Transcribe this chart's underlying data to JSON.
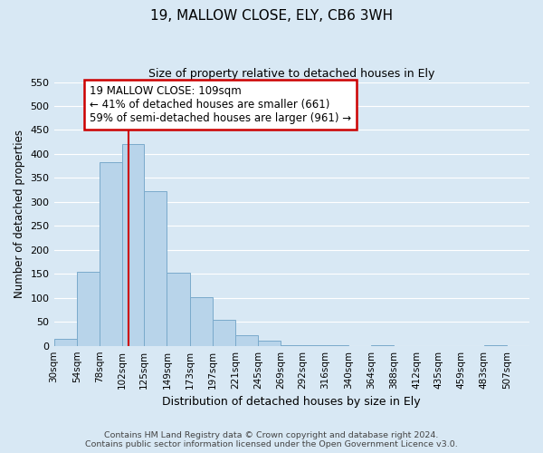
{
  "title": "19, MALLOW CLOSE, ELY, CB6 3WH",
  "subtitle": "Size of property relative to detached houses in Ely",
  "xlabel": "Distribution of detached houses by size in Ely",
  "ylabel": "Number of detached properties",
  "bar_left_edges": [
    30,
    54,
    78,
    102,
    125,
    149,
    173,
    197,
    221,
    245,
    269,
    292,
    316,
    340,
    364,
    388,
    412,
    435,
    459,
    483
  ],
  "bar_widths": [
    24,
    24,
    24,
    23,
    24,
    24,
    24,
    24,
    24,
    24,
    23,
    24,
    24,
    24,
    24,
    24,
    23,
    24,
    24,
    24
  ],
  "bar_heights": [
    15,
    155,
    382,
    420,
    323,
    153,
    101,
    55,
    22,
    10,
    2,
    1,
    1,
    0,
    1,
    0,
    0,
    0,
    0,
    1
  ],
  "tick_labels": [
    "30sqm",
    "54sqm",
    "78sqm",
    "102sqm",
    "125sqm",
    "149sqm",
    "173sqm",
    "197sqm",
    "221sqm",
    "245sqm",
    "269sqm",
    "292sqm",
    "316sqm",
    "340sqm",
    "364sqm",
    "388sqm",
    "412sqm",
    "435sqm",
    "459sqm",
    "483sqm",
    "507sqm"
  ],
  "bar_color": "#b8d4ea",
  "bar_edge_color": "#7aaacb",
  "vline_x": 109,
  "vline_color": "#cc0000",
  "ylim": [
    0,
    550
  ],
  "xlim_left": 30,
  "xlim_right": 531,
  "annotation_title": "19 MALLOW CLOSE: 109sqm",
  "annotation_line1": "← 41% of detached houses are smaller (661)",
  "annotation_line2": "59% of semi-detached houses are larger (961) →",
  "annotation_box_color": "#ffffff",
  "annotation_box_edge_color": "#cc0000",
  "footer_line1": "Contains HM Land Registry data © Crown copyright and database right 2024.",
  "footer_line2": "Contains public sector information licensed under the Open Government Licence v3.0.",
  "grid_color": "#ffffff",
  "background_color": "#d8e8f4",
  "title_fontsize": 11,
  "subtitle_fontsize": 9,
  "ylabel_fontsize": 8.5,
  "xlabel_fontsize": 9,
  "tick_fontsize": 7.5,
  "annotation_fontsize": 8.5,
  "footer_fontsize": 6.8
}
